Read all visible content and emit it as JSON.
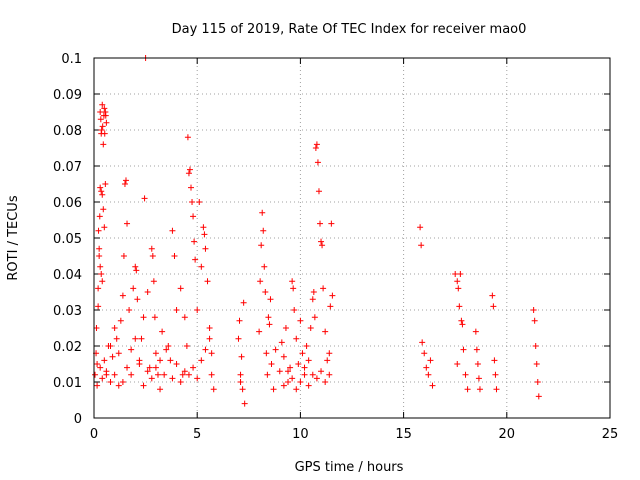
{
  "chart_data": {
    "type": "scatter",
    "title": "Day 115 of 2019, Rate Of TEC Index for receiver mao0",
    "xlabel": "GPS time / hours",
    "ylabel": "ROTI / TECUs",
    "xlim": [
      0,
      25
    ],
    "ylim": [
      0,
      0.1
    ],
    "xticks": [
      0,
      5,
      10,
      15,
      20,
      25
    ],
    "xtick_labels": [
      "0",
      "5",
      "10",
      "15",
      "20",
      "25"
    ],
    "yticks": [
      0,
      0.01,
      0.02,
      0.03,
      0.04,
      0.05,
      0.06,
      0.07,
      0.08,
      0.09,
      0.1
    ],
    "ytick_labels": [
      "0",
      "0.01",
      "0.02",
      "0.03",
      "0.04",
      "0.05",
      "0.06",
      "0.07",
      "0.08",
      "0.09",
      "0.1"
    ],
    "grid": true,
    "marker": "+",
    "color": "#ff0000",
    "series": [
      {
        "name": "ROTI",
        "points": [
          [
            0.05,
            0.012
          ],
          [
            0.1,
            0.018
          ],
          [
            0.12,
            0.025
          ],
          [
            0.15,
            0.009
          ],
          [
            0.2,
            0.031
          ],
          [
            0.22,
            0.052
          ],
          [
            0.25,
            0.047
          ],
          [
            0.28,
            0.056
          ],
          [
            0.3,
            0.064
          ],
          [
            0.3,
            0.085
          ],
          [
            0.33,
            0.083
          ],
          [
            0.35,
            0.079
          ],
          [
            0.37,
            0.08
          ],
          [
            0.4,
            0.087
          ],
          [
            0.42,
            0.081
          ],
          [
            0.45,
            0.076
          ],
          [
            0.48,
            0.084
          ],
          [
            0.5,
            0.086
          ],
          [
            0.52,
            0.079
          ],
          [
            0.55,
            0.085
          ],
          [
            0.57,
            0.084
          ],
          [
            0.6,
            0.082
          ],
          [
            0.35,
            0.063
          ],
          [
            0.4,
            0.062
          ],
          [
            0.45,
            0.058
          ],
          [
            0.5,
            0.053
          ],
          [
            0.55,
            0.065
          ],
          [
            0.25,
            0.045
          ],
          [
            0.3,
            0.042
          ],
          [
            0.35,
            0.04
          ],
          [
            0.4,
            0.038
          ],
          [
            0.2,
            0.036
          ],
          [
            0.15,
            0.015
          ],
          [
            0.3,
            0.014
          ],
          [
            0.4,
            0.011
          ],
          [
            0.5,
            0.016
          ],
          [
            0.6,
            0.013
          ],
          [
            0.7,
            0.02
          ],
          [
            0.8,
            0.01
          ],
          [
            0.9,
            0.017
          ],
          [
            1.0,
            0.012
          ],
          [
            1.1,
            0.022
          ],
          [
            1.2,
            0.009
          ],
          [
            1.3,
            0.027
          ],
          [
            1.4,
            0.034
          ],
          [
            1.45,
            0.045
          ],
          [
            1.5,
            0.065
          ],
          [
            1.55,
            0.066
          ],
          [
            1.6,
            0.054
          ],
          [
            1.7,
            0.03
          ],
          [
            1.8,
            0.019
          ],
          [
            1.9,
            0.036
          ],
          [
            2.0,
            0.042
          ],
          [
            2.05,
            0.041
          ],
          [
            2.1,
            0.033
          ],
          [
            2.2,
            0.015
          ],
          [
            2.3,
            0.022
          ],
          [
            2.4,
            0.028
          ],
          [
            2.45,
            0.061
          ],
          [
            2.5,
            0.1
          ],
          [
            2.6,
            0.035
          ],
          [
            2.7,
            0.014
          ],
          [
            2.8,
            0.047
          ],
          [
            2.85,
            0.045
          ],
          [
            2.9,
            0.038
          ],
          [
            2.95,
            0.028
          ],
          [
            3.0,
            0.018
          ],
          [
            3.1,
            0.012
          ],
          [
            3.2,
            0.008
          ],
          [
            3.3,
            0.024
          ],
          [
            3.5,
            0.019
          ],
          [
            3.7,
            0.016
          ],
          [
            3.8,
            0.052
          ],
          [
            3.9,
            0.045
          ],
          [
            4.0,
            0.03
          ],
          [
            4.2,
            0.036
          ],
          [
            4.3,
            0.012
          ],
          [
            4.4,
            0.028
          ],
          [
            4.5,
            0.02
          ],
          [
            4.55,
            0.078
          ],
          [
            4.6,
            0.068
          ],
          [
            4.65,
            0.069
          ],
          [
            4.7,
            0.064
          ],
          [
            4.75,
            0.06
          ],
          [
            4.8,
            0.056
          ],
          [
            4.85,
            0.049
          ],
          [
            4.9,
            0.044
          ],
          [
            5.0,
            0.03
          ],
          [
            5.1,
            0.06
          ],
          [
            5.2,
            0.042
          ],
          [
            5.3,
            0.053
          ],
          [
            5.35,
            0.051
          ],
          [
            5.4,
            0.047
          ],
          [
            5.5,
            0.038
          ],
          [
            5.6,
            0.025
          ],
          [
            5.7,
            0.012
          ],
          [
            5.8,
            0.008
          ],
          [
            0.6,
            0.012
          ],
          [
            0.8,
            0.02
          ],
          [
            1.0,
            0.025
          ],
          [
            1.2,
            0.018
          ],
          [
            1.4,
            0.01
          ],
          [
            1.6,
            0.014
          ],
          [
            1.8,
            0.012
          ],
          [
            2.0,
            0.022
          ],
          [
            2.2,
            0.016
          ],
          [
            2.4,
            0.009
          ],
          [
            2.6,
            0.013
          ],
          [
            2.8,
            0.011
          ],
          [
            3.0,
            0.014
          ],
          [
            3.2,
            0.016
          ],
          [
            3.4,
            0.012
          ],
          [
            3.6,
            0.02
          ],
          [
            3.8,
            0.011
          ],
          [
            4.0,
            0.015
          ],
          [
            4.2,
            0.01
          ],
          [
            4.4,
            0.013
          ],
          [
            4.6,
            0.012
          ],
          [
            4.8,
            0.014
          ],
          [
            5.0,
            0.011
          ],
          [
            5.2,
            0.016
          ],
          [
            5.4,
            0.019
          ],
          [
            5.6,
            0.022
          ],
          [
            5.7,
            0.018
          ],
          [
            7.0,
            0.022
          ],
          [
            7.05,
            0.027
          ],
          [
            7.1,
            0.012
          ],
          [
            7.15,
            0.017
          ],
          [
            7.2,
            0.008
          ],
          [
            7.25,
            0.032
          ],
          [
            7.3,
            0.004
          ],
          [
            7.1,
            0.01
          ],
          [
            8.0,
            0.024
          ],
          [
            8.05,
            0.038
          ],
          [
            8.1,
            0.048
          ],
          [
            8.15,
            0.057
          ],
          [
            8.2,
            0.052
          ],
          [
            8.25,
            0.042
          ],
          [
            8.3,
            0.035
          ],
          [
            8.35,
            0.018
          ],
          [
            8.4,
            0.012
          ],
          [
            8.45,
            0.028
          ],
          [
            8.5,
            0.026
          ],
          [
            8.55,
            0.033
          ],
          [
            8.6,
            0.015
          ],
          [
            8.7,
            0.008
          ],
          [
            8.8,
            0.019
          ],
          [
            9.0,
            0.013
          ],
          [
            9.1,
            0.021
          ],
          [
            9.2,
            0.017
          ],
          [
            9.3,
            0.025
          ],
          [
            9.4,
            0.01
          ],
          [
            9.5,
            0.014
          ],
          [
            9.6,
            0.038
          ],
          [
            9.65,
            0.036
          ],
          [
            9.7,
            0.03
          ],
          [
            9.8,
            0.022
          ],
          [
            9.9,
            0.015
          ],
          [
            10.0,
            0.027
          ],
          [
            10.1,
            0.018
          ],
          [
            10.2,
            0.012
          ],
          [
            10.3,
            0.02
          ],
          [
            10.4,
            0.016
          ],
          [
            10.5,
            0.025
          ],
          [
            10.6,
            0.033
          ],
          [
            10.65,
            0.035
          ],
          [
            10.7,
            0.028
          ],
          [
            10.75,
            0.075
          ],
          [
            10.8,
            0.076
          ],
          [
            10.85,
            0.071
          ],
          [
            10.9,
            0.063
          ],
          [
            10.95,
            0.054
          ],
          [
            11.0,
            0.049
          ],
          [
            11.05,
            0.048
          ],
          [
            11.1,
            0.036
          ],
          [
            11.2,
            0.024
          ],
          [
            11.3,
            0.016
          ],
          [
            11.4,
            0.018
          ],
          [
            11.45,
            0.031
          ],
          [
            11.5,
            0.054
          ],
          [
            11.55,
            0.034
          ],
          [
            9.2,
            0.009
          ],
          [
            9.4,
            0.013
          ],
          [
            9.6,
            0.011
          ],
          [
            9.8,
            0.008
          ],
          [
            10.0,
            0.01
          ],
          [
            10.2,
            0.014
          ],
          [
            10.4,
            0.009
          ],
          [
            10.6,
            0.012
          ],
          [
            10.8,
            0.011
          ],
          [
            11.0,
            0.013
          ],
          [
            11.2,
            0.01
          ],
          [
            11.4,
            0.012
          ],
          [
            15.8,
            0.053
          ],
          [
            15.85,
            0.048
          ],
          [
            15.9,
            0.021
          ],
          [
            16.0,
            0.018
          ],
          [
            16.1,
            0.014
          ],
          [
            16.2,
            0.012
          ],
          [
            16.3,
            0.016
          ],
          [
            16.4,
            0.009
          ],
          [
            17.5,
            0.04
          ],
          [
            17.6,
            0.038
          ],
          [
            17.65,
            0.036
          ],
          [
            17.7,
            0.031
          ],
          [
            17.75,
            0.04
          ],
          [
            17.8,
            0.027
          ],
          [
            17.85,
            0.026
          ],
          [
            17.9,
            0.019
          ],
          [
            18.0,
            0.012
          ],
          [
            18.1,
            0.008
          ],
          [
            17.6,
            0.015
          ],
          [
            18.5,
            0.024
          ],
          [
            18.55,
            0.019
          ],
          [
            18.6,
            0.015
          ],
          [
            18.65,
            0.011
          ],
          [
            18.7,
            0.008
          ],
          [
            19.3,
            0.034
          ],
          [
            19.35,
            0.031
          ],
          [
            19.4,
            0.016
          ],
          [
            19.45,
            0.012
          ],
          [
            19.5,
            0.008
          ],
          [
            21.3,
            0.03
          ],
          [
            21.35,
            0.027
          ],
          [
            21.4,
            0.02
          ],
          [
            21.45,
            0.015
          ],
          [
            21.5,
            0.01
          ],
          [
            21.55,
            0.006
          ]
        ]
      }
    ]
  }
}
